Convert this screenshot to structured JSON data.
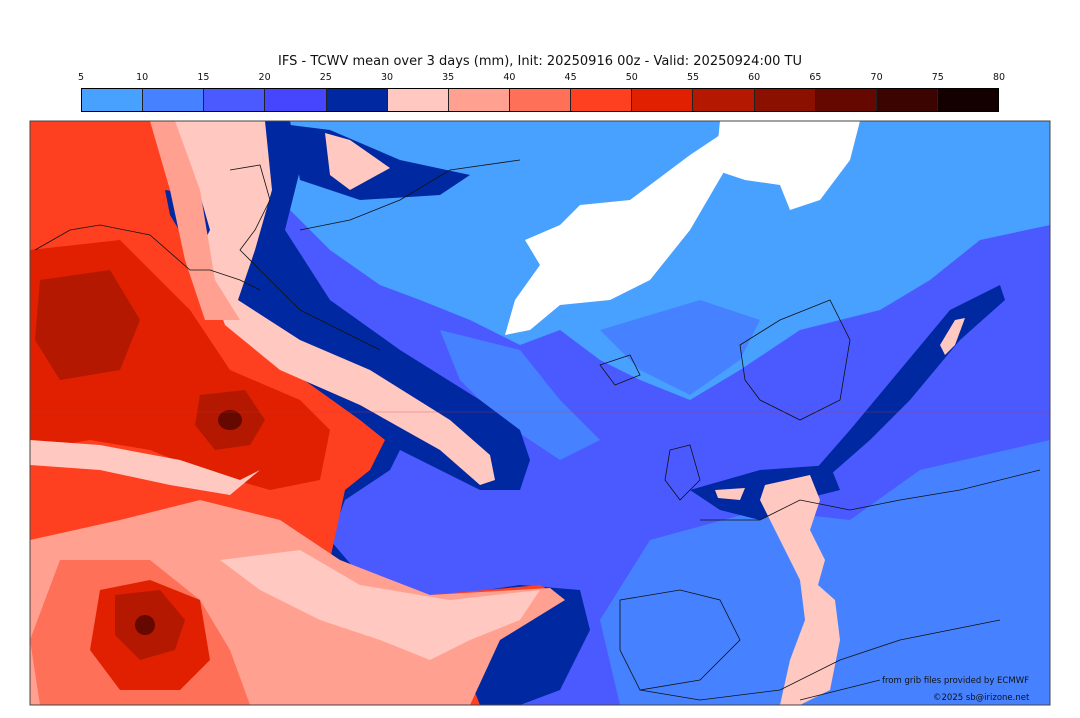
{
  "title": "IFS - TCWV mean over 3 days (mm), Init: 20250916 00z - Valid: 20250924:00 TU",
  "colorbar": {
    "ticks": [
      "5",
      "10",
      "15",
      "20",
      "25",
      "30",
      "35",
      "40",
      "45",
      "50",
      "55",
      "60",
      "65",
      "70",
      "75",
      "80"
    ],
    "colors": [
      "#48a0ff",
      "#4682ff",
      "#4b5aff",
      "#4646ff",
      "#0028a0",
      "#ffc8c0",
      "#ffa090",
      "#ff7058",
      "#ff4020",
      "#e02000",
      "#b41800",
      "#8c1000",
      "#640800",
      "#3c0400",
      "#140000"
    ]
  },
  "credits": {
    "source": "from grib files provided by ECMWF",
    "copyright": "©2025 sb@irizone.net"
  }
}
